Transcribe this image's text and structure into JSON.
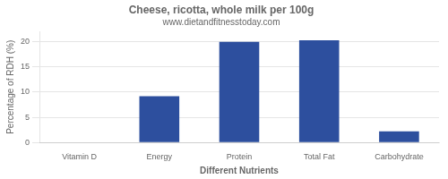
{
  "chart_data": {
    "type": "bar",
    "title": "Cheese, ricotta, whole milk per 100g",
    "subtitle": "www.dietandfitnesstoday.com",
    "xlabel": "Different Nutrients",
    "ylabel": "Percentage of RDH (%)",
    "categories": [
      "Vitamin D",
      "Energy",
      "Protein",
      "Total Fat",
      "Carbohydrate"
    ],
    "values": [
      0,
      9.2,
      20.0,
      20.3,
      2.2
    ],
    "color": "#2d4f9e",
    "ylim": [
      0,
      22
    ],
    "yticks": [
      0,
      5,
      10,
      15,
      20
    ],
    "grid": true
  }
}
